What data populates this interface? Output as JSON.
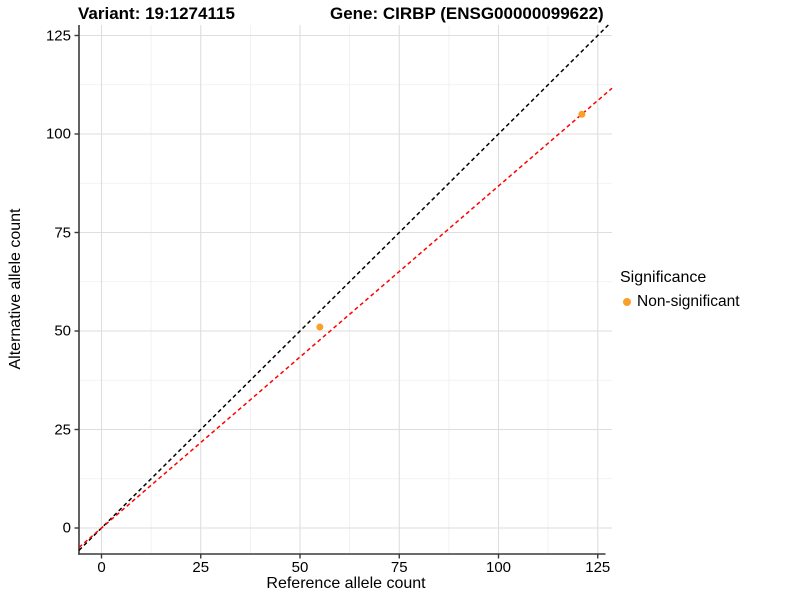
{
  "header": {
    "variant_title": "Variant: 19:1274115",
    "gene_title": "Gene: CIRBP (ENSG00000099622)"
  },
  "legend": {
    "title": "Significance",
    "items": [
      {
        "label": "Non-significant",
        "color": "#F9A02B"
      }
    ]
  },
  "chart_data": {
    "type": "scatter",
    "title": "Variant: 19:1274115 | Gene: CIRBP (ENSG00000099622)",
    "xlabel": "Reference allele count",
    "ylabel": "Alternative allele count",
    "xlim": [
      -5.7,
      128.6
    ],
    "ylim": [
      -6.6,
      127.7
    ],
    "x_ticks": [
      0,
      25,
      50,
      75,
      100,
      125
    ],
    "y_ticks": [
      0,
      25,
      50,
      75,
      100,
      125
    ],
    "grid": "major and minor light-grey gridlines on white panel",
    "legend_position": "right",
    "series": [
      {
        "name": "Non-significant",
        "color": "#F9A02B",
        "points": [
          {
            "x": 55,
            "y": 51
          },
          {
            "x": 121,
            "y": 105
          }
        ]
      }
    ],
    "lines": [
      {
        "name": "identity-line",
        "color": "#000000",
        "dash": "dashed",
        "slope": 1,
        "intercept": 0
      },
      {
        "name": "fit-line",
        "color": "#FF0000",
        "dash": "dashed",
        "slope": 0.868,
        "intercept": 0
      }
    ]
  },
  "colors": {
    "background": "#FFFFFF",
    "grid_major": "#DEDEDE",
    "grid_minor": "#EFEFEF",
    "axis_line": "#3A3A3A",
    "text": "#000000",
    "point": "#F9A02B",
    "identity_line": "#000000",
    "fit_line": "#FF0000"
  }
}
